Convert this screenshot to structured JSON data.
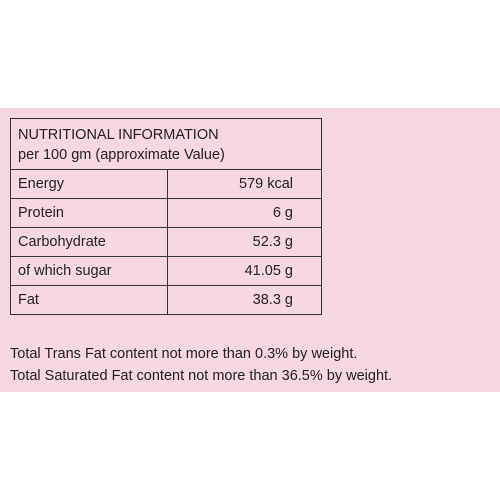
{
  "header": {
    "title": "NUTRITIONAL INFORMATION",
    "subtitle": "per 100 gm (approximate Value)"
  },
  "table": {
    "rows": [
      [
        "Energy",
        "579 kcal"
      ],
      [
        "Protein",
        "6 g"
      ],
      [
        "Carbohydrate",
        "52.3 g"
      ],
      [
        "of which sugar",
        "41.05 g"
      ],
      [
        "Fat",
        "38.3 g"
      ]
    ]
  },
  "notes": [
    "Total Trans Fat content not more than 0.3% by weight.",
    "Total Saturated Fat content not more than 36.5% by weight."
  ]
}
